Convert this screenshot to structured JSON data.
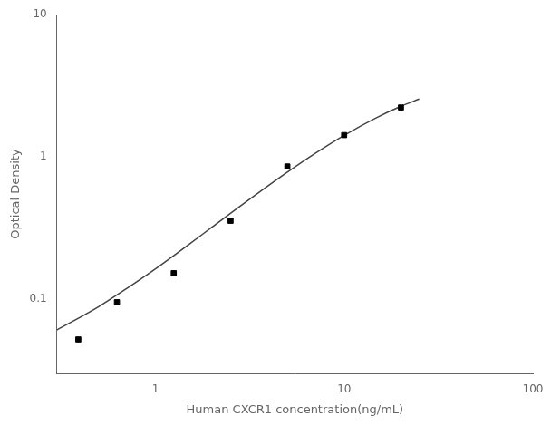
{
  "chart_data": {
    "type": "scatter",
    "xlabel": "Human CXCR1 concentration(ng/mL)",
    "ylabel": "Optical Density",
    "log": true,
    "xlim": [
      0.3,
      100
    ],
    "ylim": [
      0.03,
      10
    ],
    "xticks": [
      1,
      10,
      100
    ],
    "yticks": [
      0.1,
      1,
      10
    ],
    "grid": false,
    "series": [
      {
        "type": "scatter",
        "marker": "square",
        "color": "black",
        "x": [
          0.39,
          0.625,
          1.25,
          2.5,
          5.0,
          10.0,
          20.0
        ],
        "values": [
          0.052,
          0.095,
          0.152,
          0.355,
          0.855,
          1.42,
          2.22
        ]
      },
      {
        "type": "line",
        "line_style": "solid",
        "color": "#444444",
        "x": [
          0.3,
          0.5,
          0.7,
          1,
          1.5,
          2,
          3,
          5,
          7,
          10,
          15,
          20,
          25
        ],
        "values": [
          0.0605,
          0.0884,
          0.118,
          0.163,
          0.2415,
          0.321,
          0.479,
          0.78,
          1.055,
          1.415,
          1.896,
          2.263,
          2.548
        ]
      }
    ]
  }
}
